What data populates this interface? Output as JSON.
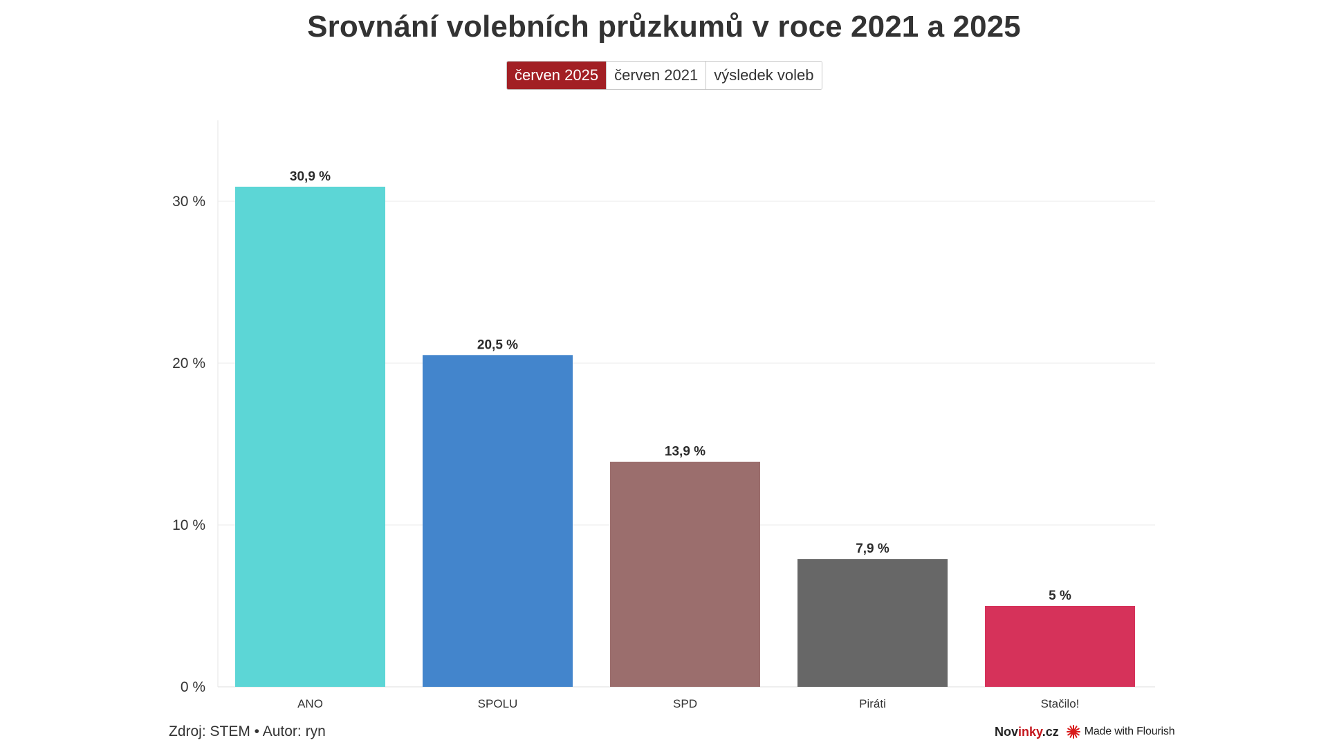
{
  "title": "Srovnání volebních průzkumů v roce 2021 a 2025",
  "toggle": {
    "options": [
      "červen 2025",
      "červen 2021",
      "výsledek voleb"
    ],
    "selected": "červen 2025"
  },
  "chart_data": {
    "type": "bar",
    "categories": [
      "ANO",
      "SPOLU",
      "SPD",
      "Piráti",
      "Stačilo!"
    ],
    "values": [
      30.9,
      20.5,
      13.9,
      7.9,
      5
    ],
    "data_labels": [
      "30,9 %",
      "20,5 %",
      "13,9 %",
      "7,9 %",
      "5 %"
    ],
    "colors": [
      "#5cd6d6",
      "#4385cc",
      "#9b6e6d",
      "#676767",
      "#d6325a"
    ],
    "ylim": [
      0,
      35
    ],
    "yticks": [
      0,
      10,
      20,
      30
    ],
    "ytick_labels": [
      "0 %",
      "10 %",
      "20 %",
      "30 %"
    ],
    "grid": true,
    "xlabel": "",
    "ylabel": ""
  },
  "footer": {
    "source": "Zdroj: STEM • Autor: ryn",
    "brand_part1": "Nov",
    "brand_part2": "inky",
    "brand_part3": ".cz",
    "made_with": "Made with Flourish"
  },
  "colors": {
    "active_toggle": "#a21f24",
    "grid": "#ebebeb",
    "flourish_icon": "#d81b1b"
  },
  "icons": {
    "flourish": "flourish-logo-icon"
  }
}
